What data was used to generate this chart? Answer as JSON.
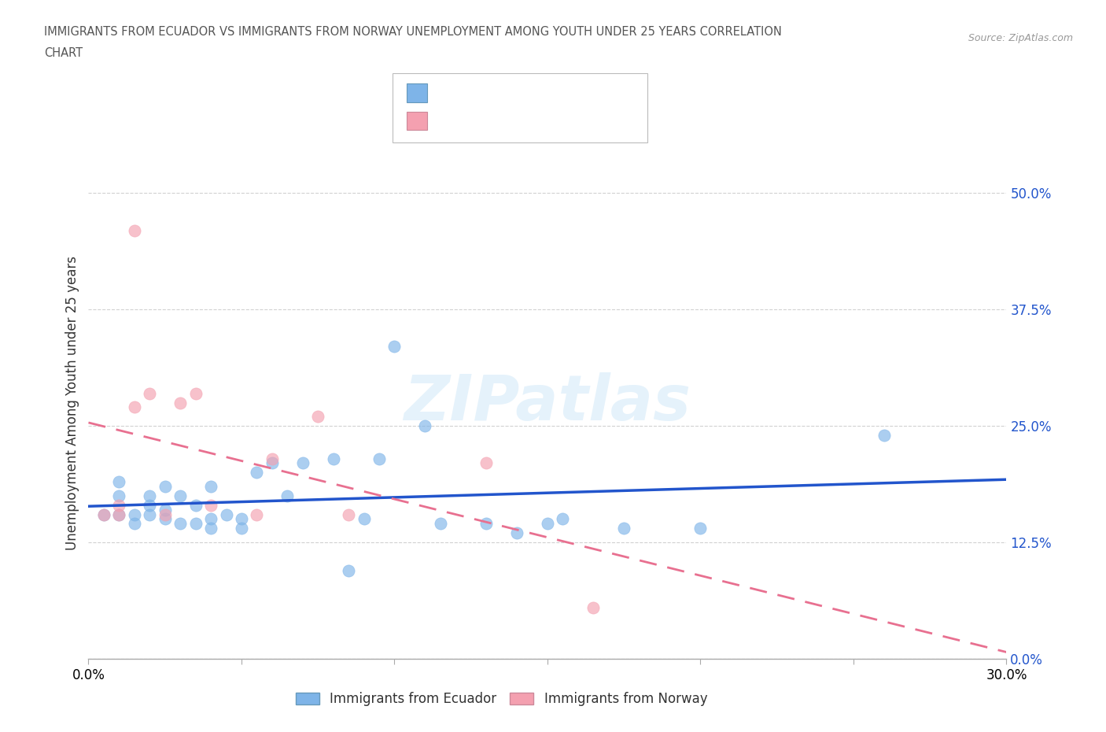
{
  "title_line1": "IMMIGRANTS FROM ECUADOR VS IMMIGRANTS FROM NORWAY UNEMPLOYMENT AMONG YOUTH UNDER 25 YEARS CORRELATION",
  "title_line2": "CHART",
  "source": "Source: ZipAtlas.com",
  "ylabel": "Unemployment Among Youth under 25 years",
  "xlim": [
    0.0,
    0.3
  ],
  "ylim": [
    0.0,
    0.55
  ],
  "yticks": [
    0.0,
    0.125,
    0.25,
    0.375,
    0.5
  ],
  "ytick_labels": [
    "0.0%",
    "12.5%",
    "25.0%",
    "37.5%",
    "50.0%"
  ],
  "xticks": [
    0.0,
    0.05,
    0.1,
    0.15,
    0.2,
    0.25,
    0.3
  ],
  "xtick_labels": [
    "0.0%",
    "",
    "",
    "",
    "",
    "",
    "30.0%"
  ],
  "ecuador_color": "#7EB4E8",
  "norway_color": "#F4A0B0",
  "ecuador_trend_color": "#2255CC",
  "norway_trend_color": "#E87090",
  "grid_color": "#CCCCCC",
  "watermark": "ZIPatlas",
  "ecuador_x": [
    0.005,
    0.01,
    0.01,
    0.01,
    0.015,
    0.015,
    0.02,
    0.02,
    0.02,
    0.025,
    0.025,
    0.025,
    0.03,
    0.03,
    0.035,
    0.035,
    0.04,
    0.04,
    0.04,
    0.045,
    0.05,
    0.05,
    0.055,
    0.06,
    0.065,
    0.07,
    0.08,
    0.085,
    0.09,
    0.095,
    0.1,
    0.11,
    0.115,
    0.13,
    0.14,
    0.15,
    0.155,
    0.175,
    0.2,
    0.26
  ],
  "ecuador_y": [
    0.155,
    0.155,
    0.175,
    0.19,
    0.145,
    0.155,
    0.155,
    0.165,
    0.175,
    0.15,
    0.16,
    0.185,
    0.145,
    0.175,
    0.145,
    0.165,
    0.14,
    0.15,
    0.185,
    0.155,
    0.14,
    0.15,
    0.2,
    0.21,
    0.175,
    0.21,
    0.215,
    0.095,
    0.15,
    0.215,
    0.335,
    0.25,
    0.145,
    0.145,
    0.135,
    0.145,
    0.15,
    0.14,
    0.14,
    0.24
  ],
  "norway_x": [
    0.005,
    0.01,
    0.01,
    0.015,
    0.02,
    0.025,
    0.03,
    0.035,
    0.04,
    0.055,
    0.06,
    0.075,
    0.085,
    0.13,
    0.165,
    0.015
  ],
  "norway_y": [
    0.155,
    0.155,
    0.165,
    0.27,
    0.285,
    0.155,
    0.275,
    0.285,
    0.165,
    0.155,
    0.215,
    0.26,
    0.155,
    0.21,
    0.055,
    0.46
  ],
  "background_color": "#FFFFFF"
}
